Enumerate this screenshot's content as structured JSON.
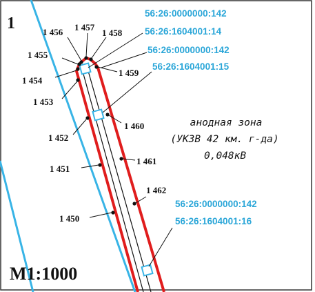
{
  "sheet_number": "1",
  "scale": "М1:1000",
  "colors": {
    "boundary_red": "#e01d1d",
    "parcel_blue": "#38b4e6",
    "label_blue": "#2aa6d8",
    "line_black": "#111111",
    "frame": "#333333",
    "background": "#ffffff"
  },
  "cadastral_labels": [
    "56:26:0000000:142",
    "56:26:1604001:14",
    "56:26:0000000:142",
    "56:26:1604001:15",
    "56:26:0000000:142",
    "56:26:1604001:16"
  ],
  "point_labels": [
    "1 456",
    "1 457",
    "1 458",
    "1 455",
    "1 459",
    "1 454",
    "1 453",
    "1 460",
    "1 452",
    "1 461",
    "1 451",
    "1 462",
    "1 450"
  ],
  "zone_annotation": {
    "line1": "анодная зона",
    "line2": "(УКЗВ 42 км. г-да)",
    "line3": "0,048кВ"
  }
}
